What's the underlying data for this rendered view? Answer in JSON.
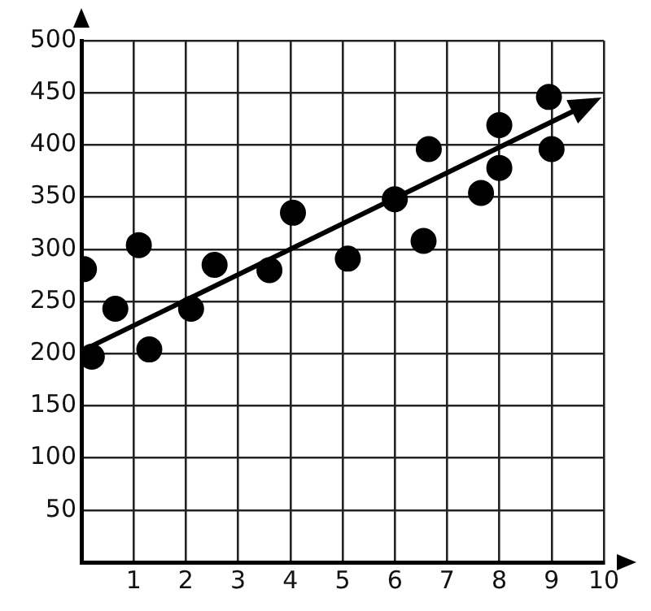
{
  "chart_data": {
    "type": "scatter",
    "x": [
      0.05,
      0.2,
      0.65,
      1.1,
      1.3,
      2.1,
      2.55,
      3.6,
      4.05,
      5.1,
      6,
      6.55,
      6.65,
      7.65,
      8,
      8,
      8.95,
      9
    ],
    "series": [
      {
        "color": "#000000",
        "marker": "circle",
        "values": [
          281,
          197,
          243,
          304,
          204,
          243,
          285,
          280,
          335,
          291,
          348,
          308,
          396,
          354,
          378,
          419,
          446,
          396
        ]
      },
      {
        "type": "line",
        "color": "#000000",
        "x": [
          0.1,
          9.85
        ],
        "values": [
          205,
          443
        ]
      }
    ],
    "xlim": [
      0,
      10
    ],
    "xticks": [
      {
        "value": 0,
        "label": null
      },
      1,
      2,
      3,
      4,
      5,
      6,
      7,
      8,
      9,
      10
    ],
    "ylim": [
      0,
      500
    ],
    "yticks": [
      {
        "value": 0,
        "label": null
      },
      50,
      100,
      150,
      200,
      250,
      300,
      350,
      400,
      450,
      500
    ],
    "grid": true,
    "legend": false
  }
}
